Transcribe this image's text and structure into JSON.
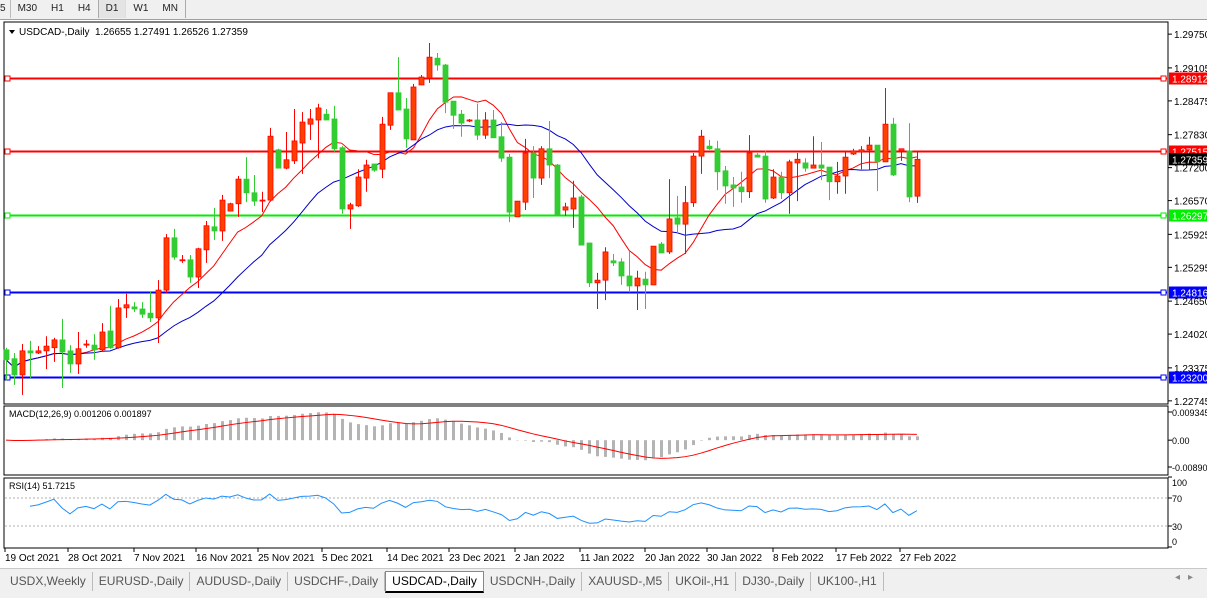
{
  "toolbar": {
    "timeframes": [
      "5",
      "M30",
      "H1",
      "H4",
      "D1",
      "W1",
      "MN"
    ],
    "active": "D1"
  },
  "main": {
    "symbol_label": "USDCAD-,Daily",
    "ohlc_label": "1.26655 1.27491 1.26526 1.27359",
    "current_price": "1.27359",
    "price_ticks": [
      "1.29750",
      "1.29105",
      "1.28475",
      "1.27830",
      "1.27200",
      "1.26570",
      "1.25925",
      "1.25295",
      "1.24650",
      "1.24020",
      "1.23375",
      "1.22745"
    ],
    "levels": [
      {
        "price": "1.28912",
        "color": "#ff0000"
      },
      {
        "price": "1.27515",
        "color": "#ff0000"
      },
      {
        "price": "1.26297",
        "color": "#00ee00"
      },
      {
        "price": "1.24816",
        "color": "#0000ff"
      },
      {
        "price": "1.23200",
        "color": "#0000ff"
      }
    ],
    "colors": {
      "bull": "#ff4000",
      "bull_edge": "#ff0000",
      "bear": "#33cc33",
      "ma_fast": "#ff0000",
      "ma_slow": "#0000cc"
    }
  },
  "chart_data": {
    "type": "candlestick",
    "ohlc": [
      [
        1.2372,
        1.2376,
        1.2314,
        1.2353
      ],
      [
        1.2355,
        1.2366,
        1.2305,
        1.2324
      ],
      [
        1.2324,
        1.2383,
        1.2286,
        1.237
      ],
      [
        1.237,
        1.2389,
        1.2318,
        1.2366
      ],
      [
        1.2366,
        1.2379,
        1.2364,
        1.237
      ],
      [
        1.237,
        1.2398,
        1.2335,
        1.2379
      ],
      [
        1.2376,
        1.2395,
        1.2349,
        1.2391
      ],
      [
        1.2391,
        1.2431,
        1.2299,
        1.2368
      ],
      [
        1.237,
        1.2381,
        1.2328,
        1.2345
      ],
      [
        1.2345,
        1.2406,
        1.2326,
        1.2374
      ],
      [
        1.2381,
        1.2391,
        1.2376,
        1.2383
      ],
      [
        1.2381,
        1.2402,
        1.2353,
        1.2372
      ],
      [
        1.2372,
        1.2423,
        1.2368,
        1.2406
      ],
      [
        1.2408,
        1.2456,
        1.2374,
        1.2376
      ],
      [
        1.2376,
        1.2469,
        1.2374,
        1.2452
      ],
      [
        1.2452,
        1.2479,
        1.2433,
        1.2458
      ],
      [
        1.2454,
        1.2463,
        1.2444,
        1.245
      ],
      [
        1.245,
        1.2463,
        1.2433,
        1.244
      ],
      [
        1.2442,
        1.2484,
        1.2425,
        1.2433
      ],
      [
        1.2433,
        1.2505,
        1.2385,
        1.2486
      ],
      [
        1.2486,
        1.2593,
        1.2481,
        1.2586
      ],
      [
        1.2586,
        1.2603,
        1.2544,
        1.2549
      ],
      [
        1.2542,
        1.2553,
        1.2538,
        1.2544
      ],
      [
        1.2544,
        1.2553,
        1.25,
        1.2511
      ],
      [
        1.2511,
        1.2567,
        1.249,
        1.2565
      ],
      [
        1.2563,
        1.2618,
        1.2538,
        1.2609
      ],
      [
        1.2607,
        1.2643,
        1.2582,
        1.2599
      ],
      [
        1.2599,
        1.2668,
        1.258,
        1.2658
      ],
      [
        1.2637,
        1.2653,
        1.2637,
        1.2651
      ],
      [
        1.2651,
        1.2704,
        1.2626,
        1.2698
      ],
      [
        1.2698,
        1.274,
        1.2654,
        1.2672
      ],
      [
        1.2672,
        1.2706,
        1.2647,
        1.2656
      ],
      [
        1.2658,
        1.2674,
        1.2635,
        1.2658
      ],
      [
        1.2658,
        1.2796,
        1.2658,
        1.278
      ],
      [
        1.2754,
        1.2756,
        1.2719,
        1.2719
      ],
      [
        1.2719,
        1.2788,
        1.2717,
        1.2735
      ],
      [
        1.2733,
        1.2832,
        1.2727,
        1.2771
      ],
      [
        1.2767,
        1.2826,
        1.2708,
        1.2807
      ],
      [
        1.2803,
        1.2832,
        1.2773,
        1.2813
      ],
      [
        1.2811,
        1.2842,
        1.2738,
        1.2834
      ],
      [
        1.2822,
        1.2832,
        1.2811,
        1.2811
      ],
      [
        1.2813,
        1.2838,
        1.275,
        1.2756
      ],
      [
        1.2758,
        1.2761,
        1.2632,
        1.2641
      ],
      [
        1.2641,
        1.2653,
        1.2603,
        1.2649
      ],
      [
        1.2647,
        1.2717,
        1.2645,
        1.2702
      ],
      [
        1.27,
        1.2735,
        1.2674,
        1.2725
      ],
      [
        1.2727,
        1.2727,
        1.2712,
        1.2715
      ],
      [
        1.2717,
        1.2817,
        1.27,
        1.2803
      ],
      [
        1.2801,
        1.2863,
        1.2792,
        1.2863
      ],
      [
        1.2863,
        1.2931,
        1.283,
        1.283
      ],
      [
        1.2832,
        1.2853,
        1.2758,
        1.2775
      ],
      [
        1.2773,
        1.288,
        1.2773,
        1.2874
      ],
      [
        1.2878,
        1.2897,
        1.2878,
        1.2893
      ],
      [
        1.2891,
        1.2958,
        1.2882,
        1.2931
      ],
      [
        1.2929,
        1.2939,
        1.2905,
        1.2916
      ],
      [
        1.2916,
        1.2918,
        1.2824,
        1.2845
      ],
      [
        1.2847,
        1.2847,
        1.2794,
        1.282
      ],
      [
        1.2822,
        1.283,
        1.2779,
        1.2805
      ],
      [
        1.2809,
        1.2813,
        1.2807,
        1.2811
      ],
      [
        1.2811,
        1.2842,
        1.2773,
        1.2782
      ],
      [
        1.2782,
        1.2826,
        1.2775,
        1.2811
      ],
      [
        1.2811,
        1.283,
        1.2777,
        1.2777
      ],
      [
        1.2779,
        1.2807,
        1.2731,
        1.2738
      ],
      [
        1.274,
        1.2746,
        1.2616,
        1.2635
      ],
      [
        1.2626,
        1.2656,
        1.2626,
        1.2656
      ],
      [
        1.2654,
        1.2775,
        1.2639,
        1.2748
      ],
      [
        1.2748,
        1.2761,
        1.2662,
        1.27
      ],
      [
        1.27,
        1.2761,
        1.2687,
        1.2756
      ],
      [
        1.2756,
        1.2809,
        1.27,
        1.2725
      ],
      [
        1.2725,
        1.2727,
        1.2628,
        1.2628
      ],
      [
        1.2639,
        1.2653,
        1.2628,
        1.2645
      ],
      [
        1.2641,
        1.2695,
        1.2605,
        1.2662
      ],
      [
        1.2664,
        1.2668,
        1.2572,
        1.2572
      ],
      [
        1.2576,
        1.2576,
        1.2492,
        1.25
      ],
      [
        1.25,
        1.2519,
        1.245,
        1.2505
      ],
      [
        1.2505,
        1.2568,
        1.2467,
        1.2559
      ],
      [
        1.2542,
        1.2555,
        1.2532,
        1.2538
      ],
      [
        1.254,
        1.2547,
        1.2496,
        1.2513
      ],
      [
        1.2513,
        1.2561,
        1.2482,
        1.2494
      ],
      [
        1.2494,
        1.2523,
        1.2448,
        1.2509
      ],
      [
        1.2507,
        1.2521,
        1.245,
        1.2496
      ],
      [
        1.2496,
        1.257,
        1.2496,
        1.257
      ],
      [
        1.2574,
        1.2578,
        1.2557,
        1.2557
      ],
      [
        1.2559,
        1.2698,
        1.2555,
        1.2622
      ],
      [
        1.2624,
        1.2666,
        1.2595,
        1.2612
      ],
      [
        1.2612,
        1.2685,
        1.2555,
        1.2653
      ],
      [
        1.2653,
        1.2748,
        1.2645,
        1.2742
      ],
      [
        1.2742,
        1.2792,
        1.2708,
        1.278
      ],
      [
        1.2761,
        1.2773,
        1.2754,
        1.2756
      ],
      [
        1.2756,
        1.2771,
        1.2677,
        1.2712
      ],
      [
        1.2714,
        1.2723,
        1.2651,
        1.2685
      ],
      [
        1.2687,
        1.2702,
        1.2645,
        1.2681
      ],
      [
        1.2683,
        1.2712,
        1.2653,
        1.2674
      ],
      [
        1.2674,
        1.2782,
        1.2662,
        1.2748
      ],
      [
        1.2744,
        1.2748,
        1.274,
        1.274
      ],
      [
        1.2742,
        1.2752,
        1.2653,
        1.266
      ],
      [
        1.2662,
        1.2717,
        1.266,
        1.2702
      ],
      [
        1.2702,
        1.2712,
        1.266,
        1.2672
      ],
      [
        1.2672,
        1.2735,
        1.2632,
        1.2731
      ],
      [
        1.2729,
        1.2748,
        1.2656,
        1.2736
      ],
      [
        1.2729,
        1.2738,
        1.2712,
        1.2719
      ],
      [
        1.2719,
        1.278,
        1.2719,
        1.2725
      ],
      [
        1.2725,
        1.2769,
        1.2696,
        1.2719
      ],
      [
        1.2721,
        1.2721,
        1.2658,
        1.2693
      ],
      [
        1.2693,
        1.2731,
        1.267,
        1.2704
      ],
      [
        1.2704,
        1.2752,
        1.267,
        1.274
      ],
      [
        1.2746,
        1.2756,
        1.2744,
        1.2752
      ],
      [
        1.275,
        1.2761,
        1.2717,
        1.2754
      ],
      [
        1.2754,
        1.2779,
        1.2715,
        1.2763
      ],
      [
        1.2763,
        1.2763,
        1.2675,
        1.2731
      ],
      [
        1.2731,
        1.2872,
        1.2731,
        1.2803
      ],
      [
        1.2803,
        1.2815,
        1.2704,
        1.2706
      ],
      [
        1.2752,
        1.2756,
        1.2733,
        1.2756
      ],
      [
        1.2752,
        1.2805,
        1.2654,
        1.2664
      ],
      [
        1.26655,
        1.27491,
        1.26526,
        1.27359
      ]
    ],
    "x_tick_labels": [
      "19 Oct 2021",
      "28 Oct 2021",
      "7 Nov 2021",
      "16 Nov 2021",
      "25 Nov 2021",
      "5 Dec 2021",
      "14 Dec 2021",
      "23 Dec 2021",
      "2 Jan 2022",
      "11 Jan 2022",
      "20 Jan 2022",
      "30 Jan 2022",
      "8 Feb 2022",
      "17 Feb 2022",
      "27 Feb 2022"
    ],
    "y_range": [
      1.2262,
      1.2998
    ]
  },
  "macd": {
    "label": "MACD(12,26,9) 0.001206 0.001897",
    "ticks": [
      "0.009345",
      "0.00",
      "-0.00890"
    ],
    "range": [
      -0.0089,
      0.009345
    ]
  },
  "rsi": {
    "label": "RSI(14) 51.7215",
    "ticks": [
      "100",
      "70",
      "30",
      "0"
    ]
  },
  "tabs": [
    "USDX,Weekly",
    "EURUSD-,Daily",
    "AUDUSD-,Daily",
    "USDCHF-,Daily",
    "USDCAD-,Daily",
    "USDCNH-,Daily",
    "XAUUSD-,M5",
    "UKOil-,H1",
    "DJ30-,Daily",
    "UK100-,H1"
  ],
  "active_tab": "USDCAD-,Daily",
  "scroll_arrows": [
    "◂",
    "▸"
  ]
}
